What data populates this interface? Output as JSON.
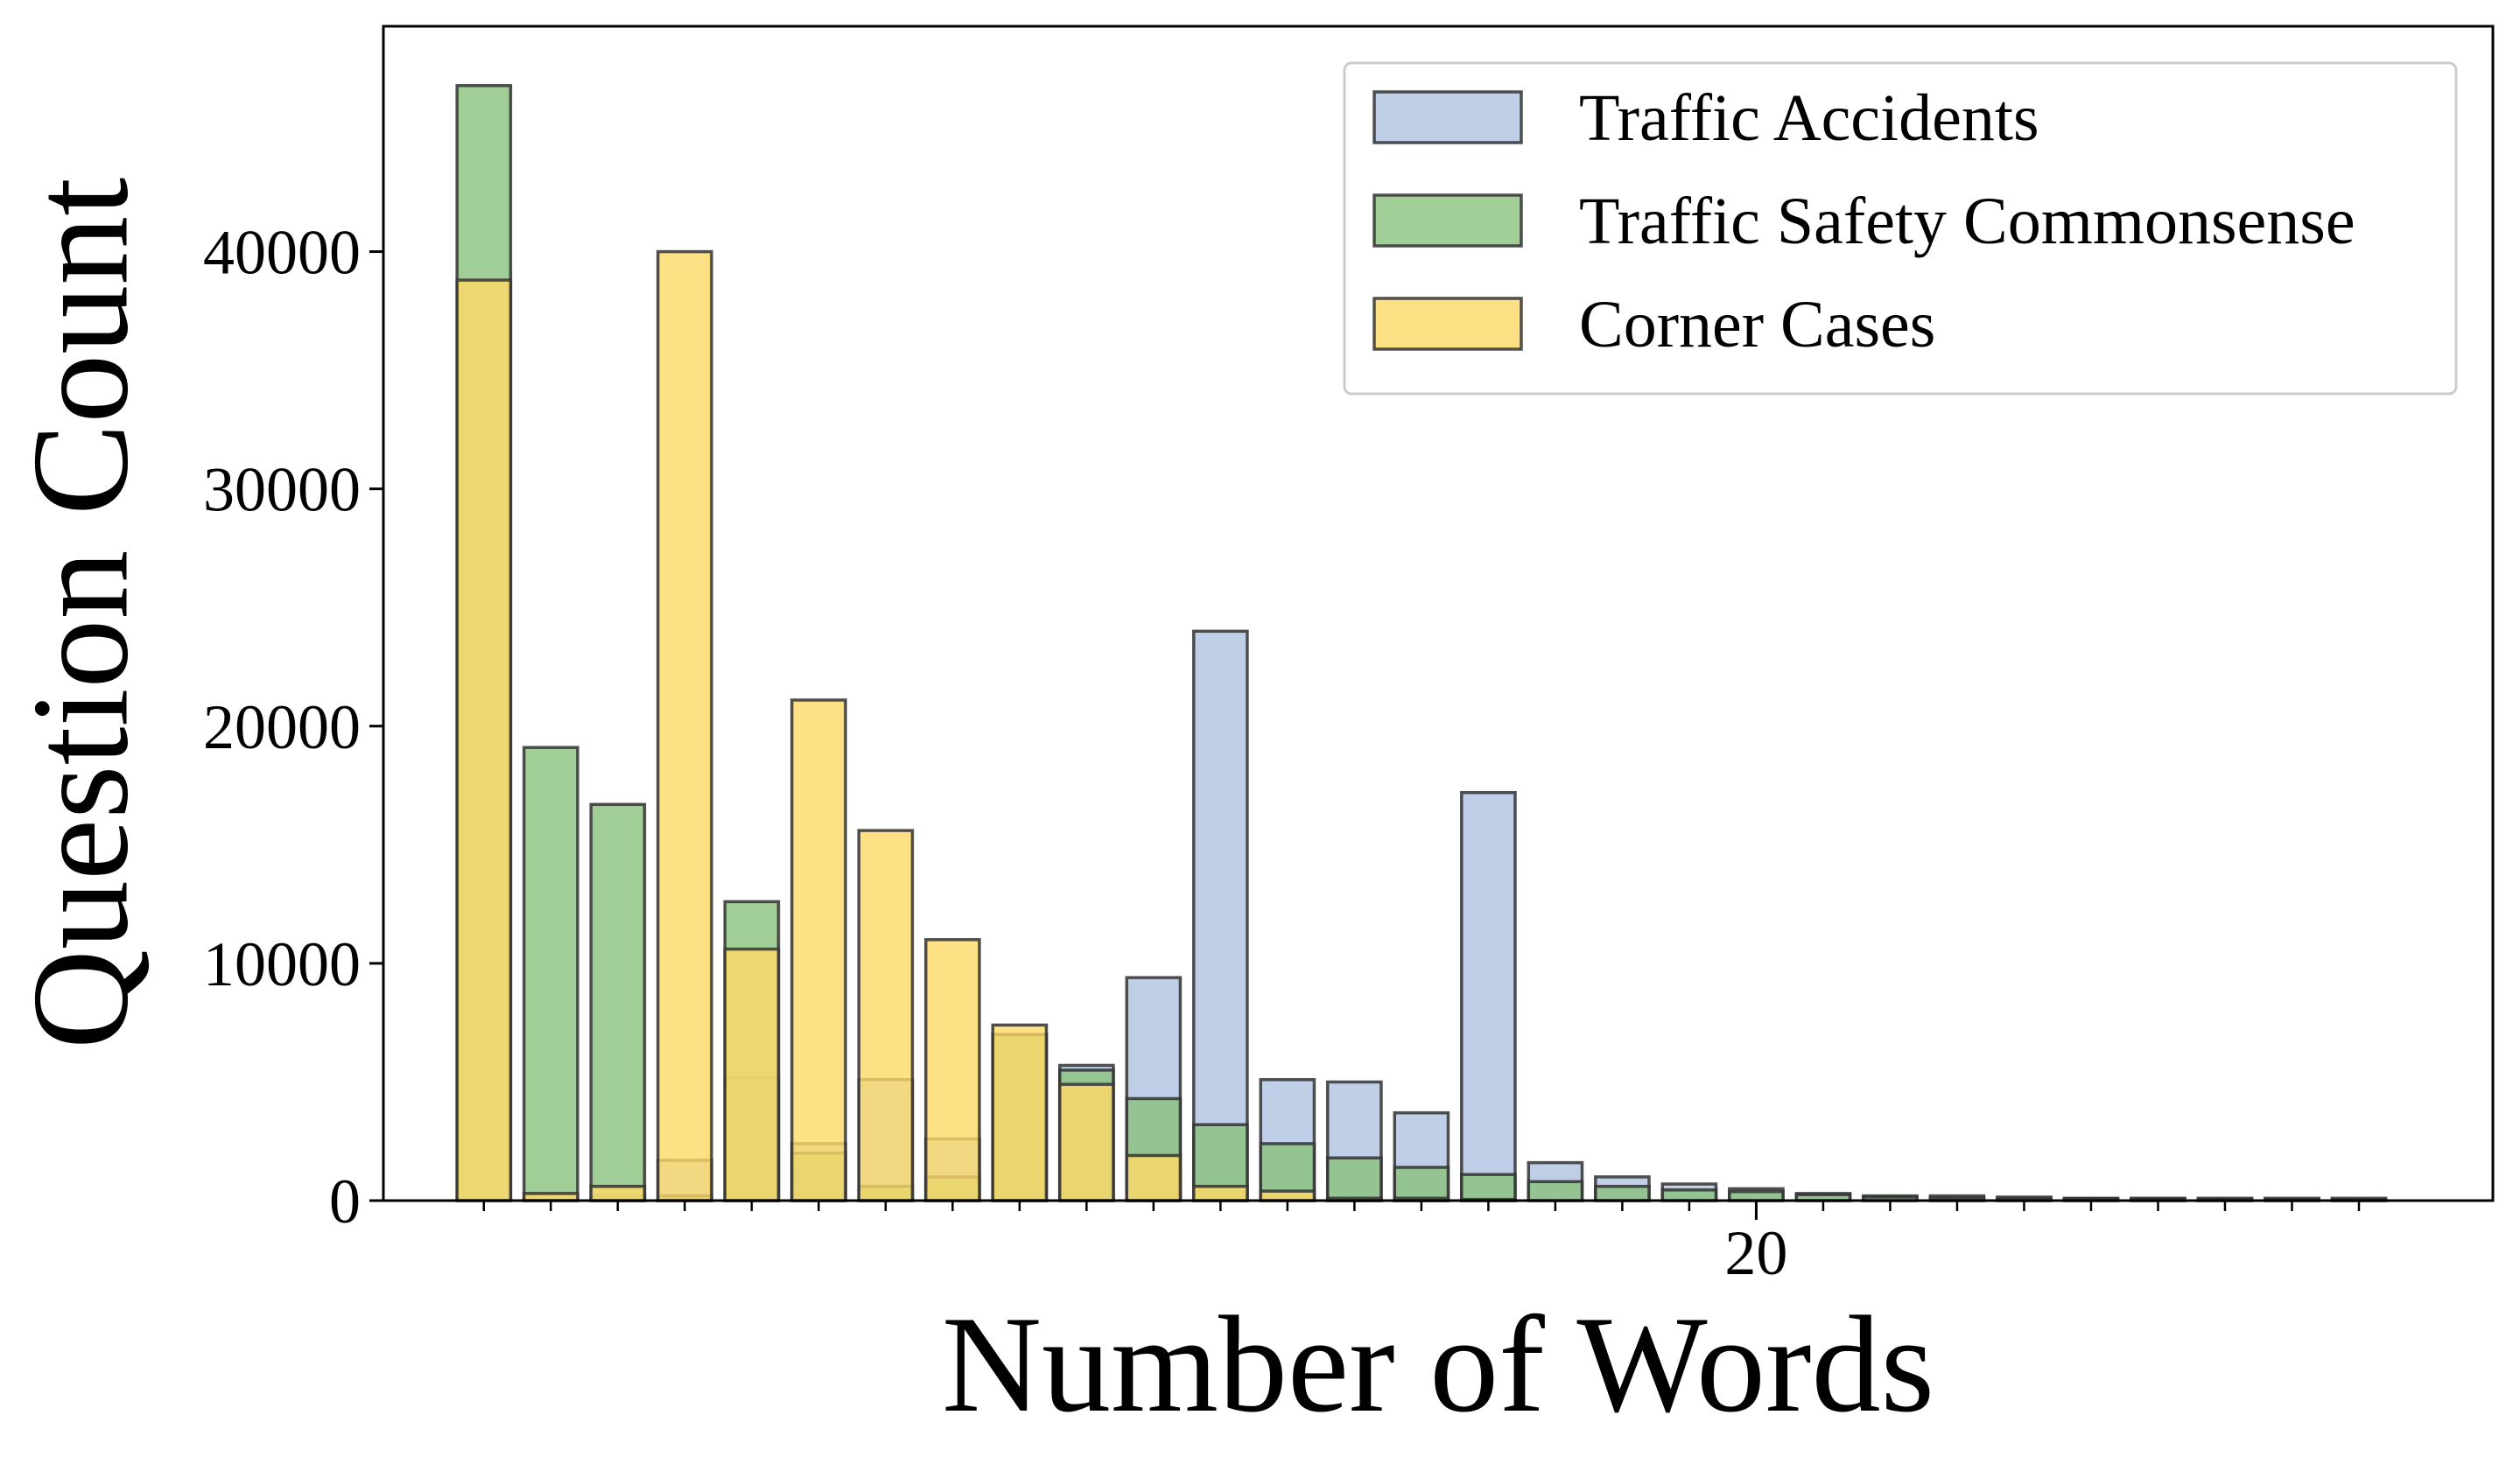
{
  "chart_data": {
    "type": "bar",
    "title": "",
    "xlabel": "Number of Words",
    "ylabel": "Question Count",
    "x": [
      1,
      2,
      3,
      4,
      5,
      6,
      7,
      8,
      9,
      10,
      11,
      12,
      13,
      14,
      15,
      16,
      17,
      18,
      19,
      20,
      21,
      22,
      23,
      24,
      25,
      26,
      27,
      28,
      29
    ],
    "xlim": [
      -0.5,
      31
    ],
    "ylim": [
      0,
      49500
    ],
    "y_ticks": [
      0,
      10000,
      20000,
      30000,
      40000
    ],
    "y_tick_labels": [
      "0",
      "10000",
      "20000",
      "30000",
      "40000"
    ],
    "x_ticks_minor": [
      1,
      2,
      3,
      4,
      5,
      6,
      7,
      8,
      9,
      10,
      11,
      12,
      13,
      14,
      15,
      16,
      17,
      18,
      19,
      20,
      21,
      22,
      23,
      24,
      25,
      26,
      27,
      28,
      29
    ],
    "x_ticks_major": [
      20
    ],
    "x_tick_labels": [
      "20"
    ],
    "grid": false,
    "legend_position": "top-right",
    "series": [
      {
        "name": "Traffic Accidents",
        "color": "#aec3e1",
        "values": [
          0,
          0,
          200,
          1700,
          5200,
          2400,
          5100,
          2600,
          7000,
          5700,
          9400,
          24000,
          5100,
          5000,
          3700,
          17200,
          1600,
          1000,
          700,
          500,
          300,
          200,
          200,
          150,
          100,
          100,
          100,
          100,
          100
        ]
      },
      {
        "name": "Traffic Safety Commonsense",
        "color": "#8ac07c",
        "values": [
          47000,
          19100,
          16700,
          200,
          12600,
          2000,
          600,
          1000,
          7000,
          5500,
          4300,
          3200,
          2400,
          1800,
          1400,
          1100,
          800,
          600,
          450,
          380,
          250,
          150,
          120,
          90,
          80,
          70,
          60,
          50,
          40
        ]
      },
      {
        "name": "Corner Cases",
        "color": "#ffd966",
        "values": [
          38800,
          300,
          600,
          40000,
          10600,
          21100,
          15600,
          11000,
          7400,
          4900,
          1900,
          600,
          400,
          100,
          100,
          50,
          0,
          0,
          0,
          0,
          0,
          0,
          0,
          0,
          0,
          0,
          0,
          0,
          0
        ]
      }
    ]
  }
}
